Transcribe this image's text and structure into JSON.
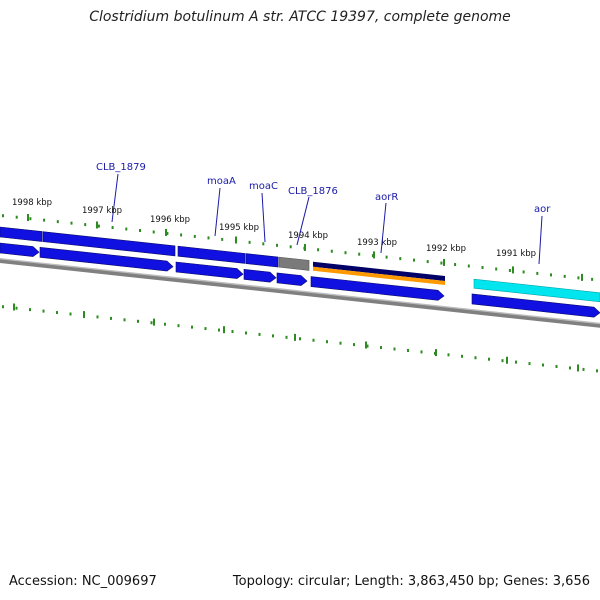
{
  "title": "Clostridium botulinum A str. ATCC 19397, complete genome",
  "footer": {
    "accession": "Accession: NC_009697",
    "summary": "Topology: circular; Length: 3,863,450 bp; Genes: 3,656"
  },
  "colors": {
    "cds": "#1010e0",
    "cds_dark": "#0a0a70",
    "backbone": "#808080",
    "pseudo": "#7a7a7a",
    "orange": "#ff9900",
    "navy": "#000066",
    "cyan": "#00e5ee",
    "tick": "#2e8b22",
    "label": "#1a1aa8"
  },
  "kbp_labels": [
    "1998 kbp",
    "1997 kbp",
    "1996 kbp",
    "1995 kbp",
    "1994 kbp",
    "1993 kbp",
    "1992 kbp",
    "1991 kbp"
  ],
  "gene_labels": [
    "CLB_1879",
    "moaA",
    "moaC",
    "CLB_1876",
    "aorR",
    "aor"
  ]
}
